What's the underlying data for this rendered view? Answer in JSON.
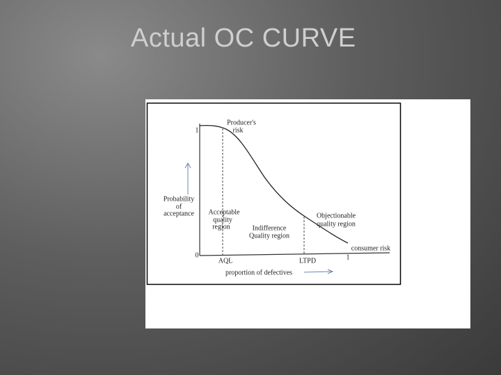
{
  "slide": {
    "title": "Actual OC CURVE"
  },
  "figure": {
    "y_top_tick": "1",
    "origin": "0",
    "x_end_tick": "1",
    "producers_risk": [
      "Producer's",
      "risk"
    ],
    "y_axis_label": [
      "Probability",
      "of",
      "acceptance"
    ],
    "acceptable_region": [
      "Acceptable",
      "quality",
      "region"
    ],
    "indifference_region": [
      "Indifference",
      "Quality region"
    ],
    "objectionable_region": [
      "Objectionable",
      "quality region"
    ],
    "consumer_risk": "consumer risk",
    "aql": "AQL",
    "ltpd": "LTPD",
    "x_axis_label": "proportion of defectives"
  }
}
